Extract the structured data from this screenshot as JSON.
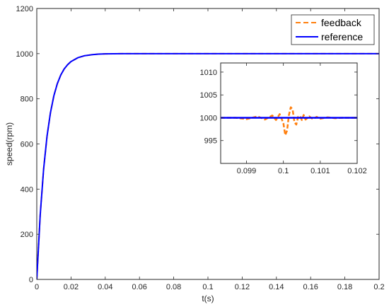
{
  "chart_data": [
    {
      "type": "line",
      "xlabel": "t(s)",
      "ylabel": "speed(rpm)",
      "xlim": [
        0,
        0.2
      ],
      "ylim": [
        0,
        1200
      ],
      "xticks": [
        0,
        0.02,
        0.04,
        0.06,
        0.08,
        0.1,
        0.12,
        0.14,
        0.16,
        0.18,
        0.2
      ],
      "xtick_labels": [
        "0",
        "0.02",
        "0.04",
        "0.06",
        "0.08",
        "0.1",
        "0.12",
        "0.14",
        "0.16",
        "0.18",
        "0.2"
      ],
      "yticks": [
        0,
        200,
        400,
        600,
        800,
        1000,
        1200
      ],
      "ytick_labels": [
        "0",
        "200",
        "400",
        "600",
        "800",
        "1000",
        "1200"
      ],
      "grid": false,
      "legend_position": "top-right",
      "series": [
        {
          "name": "feedback",
          "color": "#ff7f0e",
          "style": "dashed",
          "x": [
            0,
            0.002,
            0.004,
            0.006,
            0.008,
            0.01,
            0.012,
            0.014,
            0.016,
            0.018,
            0.02,
            0.024,
            0.028,
            0.032,
            0.036,
            0.04,
            0.05,
            0.06,
            0.08,
            0.1,
            0.12,
            0.14,
            0.16,
            0.18,
            0.2
          ],
          "y": [
            0,
            285,
            489,
            635,
            739,
            814,
            867,
            905,
            932,
            951,
            965,
            982,
            991,
            995,
            998,
            999,
            1000,
            1000,
            1000,
            1000,
            1000,
            1000,
            1000,
            1000,
            1000
          ]
        },
        {
          "name": "reference",
          "color": "#0000ff",
          "style": "solid",
          "x": [
            0,
            0.002,
            0.004,
            0.006,
            0.008,
            0.01,
            0.012,
            0.014,
            0.016,
            0.018,
            0.02,
            0.024,
            0.028,
            0.032,
            0.036,
            0.04,
            0.05,
            0.06,
            0.08,
            0.1,
            0.12,
            0.14,
            0.16,
            0.18,
            0.2
          ],
          "y": [
            0,
            285,
            489,
            635,
            739,
            814,
            867,
            905,
            932,
            951,
            965,
            982,
            991,
            995,
            998,
            999,
            1000,
            1000,
            1000,
            1000,
            1000,
            1000,
            1000,
            1000,
            1000
          ]
        }
      ]
    },
    {
      "type": "line",
      "xlim": [
        0.0983,
        0.102
      ],
      "ylim": [
        990,
        1012
      ],
      "xticks": [
        0.099,
        0.1,
        0.101,
        0.102
      ],
      "xtick_labels": [
        "0.099",
        "0.1",
        "0.101",
        "0.102"
      ],
      "yticks": [
        995,
        1000,
        1005,
        1010
      ],
      "ytick_labels": [
        "995",
        "1000",
        "1005",
        "1010"
      ],
      "grid": false,
      "series": [
        {
          "name": "feedback",
          "color": "#ff7f0e",
          "style": "dashed",
          "x": [
            0.0983,
            0.0987,
            0.099,
            0.0993,
            0.0995,
            0.0997,
            0.0998,
            0.0999,
            0.1,
            0.10005,
            0.1001,
            0.10015,
            0.1002,
            0.10025,
            0.1003,
            0.10035,
            0.1004,
            0.10045,
            0.1005,
            0.10055,
            0.1006,
            0.1007,
            0.1008,
            0.1009,
            0.101,
            0.1012,
            0.1014,
            0.1016,
            0.1018,
            0.102
          ],
          "y": [
            1000,
            1000,
            999.7,
            1000.3,
            999.6,
            1000.5,
            999.5,
            1000.8,
            998.8,
            996.2,
            997.2,
            1000.6,
            1002.3,
            1001.8,
            999.0,
            998.5,
            1000.2,
            1000.4,
            999.5,
            1000.6,
            999.6,
            1000.3,
            999.7,
            1000.2,
            999.8,
            1000.1,
            999.9,
            1000,
            1000,
            1000
          ]
        },
        {
          "name": "reference",
          "color": "#0000ff",
          "style": "solid",
          "x": [
            0.0983,
            0.102
          ],
          "y": [
            1000,
            1000
          ]
        }
      ]
    }
  ]
}
